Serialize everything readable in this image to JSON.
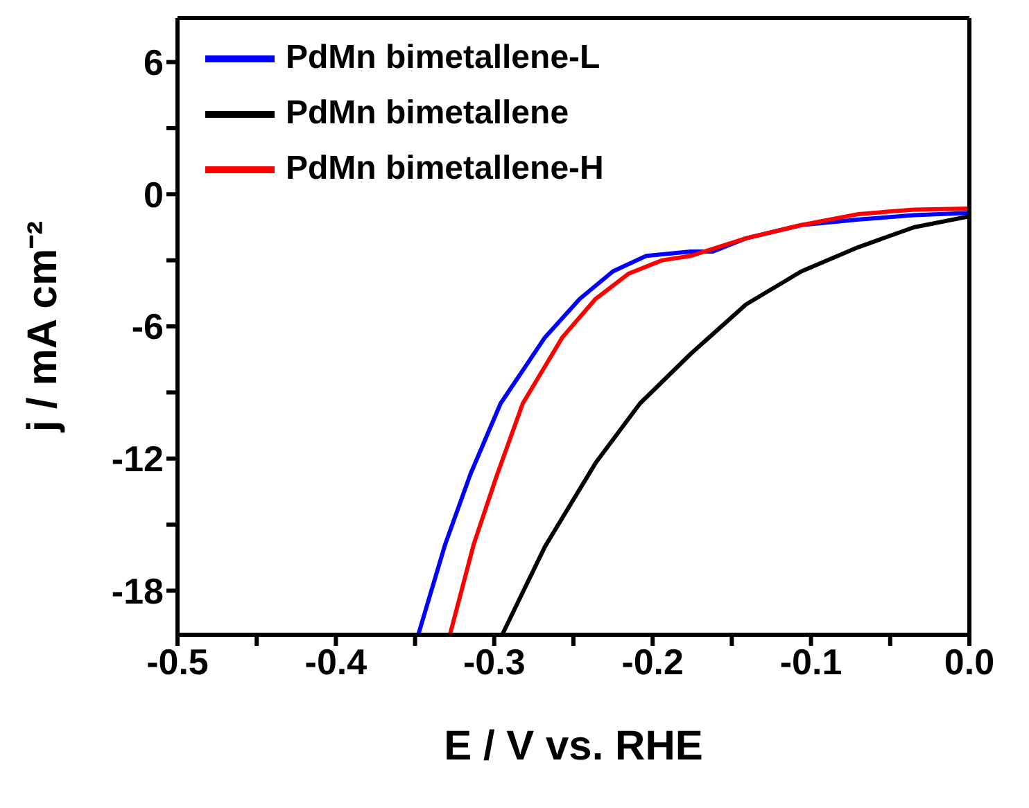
{
  "chart_data": {
    "type": "line",
    "xlabel": "E / V vs. RHE",
    "ylabel": "j / mA cm⁻²",
    "xlim": [
      -0.5,
      0.0
    ],
    "xticks": [
      -0.5,
      {
        "value": -0.45,
        "label": null
      },
      -0.4,
      {
        "value": -0.35,
        "label": null
      },
      -0.3,
      {
        "value": -0.25,
        "label": null
      },
      -0.2,
      {
        "value": -0.15,
        "label": null
      },
      -0.1,
      {
        "value": -0.05,
        "label": null
      },
      {
        "value": 0.0,
        "label": "0.0"
      }
    ],
    "ylim": [
      -20,
      8
    ],
    "yticks": [
      -18,
      {
        "value": -15,
        "label": null
      },
      -12,
      {
        "value": -9,
        "label": null
      },
      -6,
      {
        "value": -3,
        "label": null
      },
      0,
      {
        "value": 3,
        "label": null
      },
      6
    ],
    "legend": "top left",
    "marker": "none",
    "line_style": "solid",
    "series": [
      {
        "name": "PdMn bimetallene-L",
        "color": "#0000ff",
        "x": [
          -0.348,
          -0.331,
          -0.315,
          -0.296,
          -0.268,
          -0.246,
          -0.225,
          -0.204,
          -0.176,
          -0.162,
          -0.141,
          -0.106,
          -0.07,
          -0.035,
          0.0
        ],
        "values": [
          -20,
          -15.9,
          -12.7,
          -9.5,
          -6.5,
          -4.75,
          -3.5,
          -2.8,
          -2.6,
          -2.6,
          -2.0,
          -1.4,
          -1.15,
          -0.95,
          -0.85
        ]
      },
      {
        "name": "PdMn bimetallene",
        "color": "#000000",
        "x": [
          -0.295,
          -0.268,
          -0.236,
          -0.208,
          -0.176,
          -0.141,
          -0.106,
          -0.07,
          -0.035,
          0.0
        ],
        "values": [
          -20,
          -16,
          -12.2,
          -9.5,
          -7.25,
          -5.0,
          -3.5,
          -2.4,
          -1.5,
          -1.0
        ]
      },
      {
        "name": "PdMn bimetallene-H",
        "color": "#ff0000",
        "x": [
          -0.328,
          -0.313,
          -0.299,
          -0.282,
          -0.257,
          -0.236,
          -0.215,
          -0.194,
          -0.176,
          -0.141,
          -0.106,
          -0.07,
          -0.035,
          0.0
        ],
        "values": [
          -20,
          -15.9,
          -12.9,
          -9.5,
          -6.5,
          -4.75,
          -3.6,
          -3.0,
          -2.8,
          -2.0,
          -1.4,
          -0.9,
          -0.7,
          -0.65
        ]
      }
    ]
  }
}
